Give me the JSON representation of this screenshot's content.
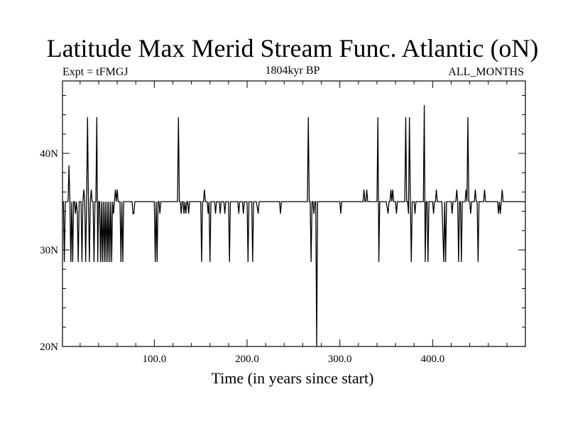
{
  "chart_data": {
    "type": "line",
    "title": "Latitude Max Merid Stream Func. Atlantic (oN)",
    "subtitle_left": "Expt = tFMGJ",
    "subtitle_center": "1804kyr BP",
    "subtitle_right": "ALL_MONTHS",
    "xlabel": "Time (in years since start)",
    "ylabel": "",
    "xlim": [
      1,
      500
    ],
    "ylim": [
      20,
      47.5
    ],
    "x_ticks": [
      100,
      200,
      300,
      400
    ],
    "x_tick_labels": [
      "100.0",
      "200.0",
      "300.0",
      "400.0"
    ],
    "y_ticks": [
      20,
      30,
      40
    ],
    "y_tick_labels": [
      "20N",
      "30N",
      "40N"
    ],
    "grid": false,
    "series": [
      {
        "color": "#000000",
        "points": [
          [
            1,
            35
          ],
          [
            2,
            35
          ],
          [
            3,
            28.75
          ],
          [
            4,
            35
          ],
          [
            5,
            35
          ],
          [
            6,
            35
          ],
          [
            7,
            35
          ],
          [
            8,
            38.75
          ],
          [
            9,
            35
          ],
          [
            10,
            28.75
          ],
          [
            11,
            35
          ],
          [
            12,
            28.75
          ],
          [
            13,
            35
          ],
          [
            14,
            35
          ],
          [
            15,
            33.75
          ],
          [
            16,
            35
          ],
          [
            17,
            33.75
          ],
          [
            18,
            28.75
          ],
          [
            19,
            35
          ],
          [
            20,
            35
          ],
          [
            21,
            35
          ],
          [
            22,
            28.75
          ],
          [
            23,
            35
          ],
          [
            24,
            36.25
          ],
          [
            25,
            35
          ],
          [
            26,
            28.75
          ],
          [
            27,
            35
          ],
          [
            28,
            43.75
          ],
          [
            29,
            35
          ],
          [
            30,
            28.75
          ],
          [
            31,
            35
          ],
          [
            32,
            36.25
          ],
          [
            33,
            35
          ],
          [
            34,
            35
          ],
          [
            35,
            28.75
          ],
          [
            36,
            35
          ],
          [
            37,
            35
          ],
          [
            38,
            43.75
          ],
          [
            39,
            28.75
          ],
          [
            40,
            35
          ],
          [
            41,
            35
          ],
          [
            42,
            28.75
          ],
          [
            43,
            35
          ],
          [
            44,
            28.75
          ],
          [
            45,
            35
          ],
          [
            46,
            28.75
          ],
          [
            47,
            35
          ],
          [
            48,
            28.75
          ],
          [
            49,
            35
          ],
          [
            50,
            28.75
          ],
          [
            51,
            35
          ],
          [
            52,
            28.75
          ],
          [
            53,
            35
          ],
          [
            54,
            28.75
          ],
          [
            55,
            35
          ],
          [
            56,
            33.75
          ],
          [
            57,
            35
          ],
          [
            58,
            36.25
          ],
          [
            59,
            35
          ],
          [
            60,
            36.25
          ],
          [
            61,
            35
          ],
          [
            62,
            35
          ],
          [
            63,
            35
          ],
          [
            64,
            28.75
          ],
          [
            65,
            35
          ],
          [
            66,
            28.75
          ],
          [
            67,
            35
          ],
          [
            68,
            35
          ],
          [
            70,
            35
          ],
          [
            75,
            35
          ],
          [
            76,
            35
          ],
          [
            77,
            33.75
          ],
          [
            78,
            33.75
          ],
          [
            79,
            35
          ],
          [
            85,
            35
          ],
          [
            90,
            35
          ],
          [
            95,
            35
          ],
          [
            100,
            35
          ],
          [
            101,
            28.75
          ],
          [
            102,
            35
          ],
          [
            103,
            28.75
          ],
          [
            104,
            35
          ],
          [
            105,
            35
          ],
          [
            106,
            33.75
          ],
          [
            107,
            35
          ],
          [
            110,
            35
          ],
          [
            115,
            35
          ],
          [
            120,
            35
          ],
          [
            125,
            35
          ],
          [
            126,
            43.75
          ],
          [
            127,
            35
          ],
          [
            128,
            35
          ],
          [
            129,
            33.75
          ],
          [
            130,
            35
          ],
          [
            131,
            35
          ],
          [
            132,
            33.75
          ],
          [
            133,
            35
          ],
          [
            134,
            33.75
          ],
          [
            135,
            35
          ],
          [
            136,
            35
          ],
          [
            137,
            33.75
          ],
          [
            138,
            35
          ],
          [
            140,
            35
          ],
          [
            145,
            35
          ],
          [
            150,
            35
          ],
          [
            151,
            28.75
          ],
          [
            152,
            35
          ],
          [
            153,
            35
          ],
          [
            154,
            36.25
          ],
          [
            155,
            35
          ],
          [
            156,
            35
          ],
          [
            157,
            35
          ],
          [
            158,
            33.75
          ],
          [
            159,
            35
          ],
          [
            160,
            28.75
          ],
          [
            161,
            35
          ],
          [
            162,
            35
          ],
          [
            165,
            35
          ],
          [
            166,
            33.75
          ],
          [
            167,
            35
          ],
          [
            170,
            35
          ],
          [
            171,
            33.75
          ],
          [
            172,
            35
          ],
          [
            175,
            35
          ],
          [
            176,
            33.75
          ],
          [
            177,
            35
          ],
          [
            180,
            35
          ],
          [
            181,
            28.75
          ],
          [
            182,
            35
          ],
          [
            185,
            35
          ],
          [
            190,
            35
          ],
          [
            191,
            33.75
          ],
          [
            192,
            35
          ],
          [
            195,
            35
          ],
          [
            196,
            33.75
          ],
          [
            197,
            35
          ],
          [
            200,
            35
          ],
          [
            201,
            28.75
          ],
          [
            202,
            35
          ],
          [
            205,
            35
          ],
          [
            206,
            28.75
          ],
          [
            207,
            35
          ],
          [
            210,
            35
          ],
          [
            212,
            33.75
          ],
          [
            213,
            35
          ],
          [
            220,
            35
          ],
          [
            230,
            35
          ],
          [
            235,
            35
          ],
          [
            236,
            33.75
          ],
          [
            237,
            35
          ],
          [
            240,
            35
          ],
          [
            250,
            35
          ],
          [
            260,
            35
          ],
          [
            265,
            35
          ],
          [
            266,
            43.75
          ],
          [
            267,
            35
          ],
          [
            268,
            35
          ],
          [
            269,
            28.75
          ],
          [
            270,
            35
          ],
          [
            271,
            35
          ],
          [
            272,
            33.75
          ],
          [
            273,
            35
          ],
          [
            274,
            35
          ],
          [
            275,
            20
          ],
          [
            276,
            35
          ],
          [
            277,
            35
          ],
          [
            280,
            35
          ],
          [
            290,
            35
          ],
          [
            300,
            35
          ],
          [
            301,
            33.75
          ],
          [
            302,
            35
          ],
          [
            310,
            35
          ],
          [
            320,
            35
          ],
          [
            325,
            35
          ],
          [
            326,
            36.25
          ],
          [
            327,
            35
          ],
          [
            328,
            35
          ],
          [
            329,
            36.25
          ],
          [
            330,
            35
          ],
          [
            335,
            35
          ],
          [
            340,
            35
          ],
          [
            341,
            43.75
          ],
          [
            342,
            28.75
          ],
          [
            343,
            35
          ],
          [
            344,
            35
          ],
          [
            345,
            35
          ],
          [
            350,
            35
          ],
          [
            352,
            33.75
          ],
          [
            353,
            35
          ],
          [
            354,
            35
          ],
          [
            355,
            36.25
          ],
          [
            356,
            35
          ],
          [
            357,
            36.25
          ],
          [
            358,
            35
          ],
          [
            360,
            35
          ],
          [
            361,
            33.75
          ],
          [
            362,
            35
          ],
          [
            365,
            35
          ],
          [
            370,
            35
          ],
          [
            371,
            43.75
          ],
          [
            372,
            35
          ],
          [
            373,
            35
          ],
          [
            374,
            33.75
          ],
          [
            375,
            43.75
          ],
          [
            376,
            35
          ],
          [
            377,
            28.75
          ],
          [
            378,
            35
          ],
          [
            380,
            35
          ],
          [
            381,
            33.75
          ],
          [
            382,
            35
          ],
          [
            385,
            35
          ],
          [
            390,
            35
          ],
          [
            391,
            45
          ],
          [
            392,
            28.75
          ],
          [
            393,
            35
          ],
          [
            394,
            35
          ],
          [
            395,
            28.75
          ],
          [
            396,
            35
          ],
          [
            397,
            35
          ],
          [
            400,
            35
          ],
          [
            401,
            33.75
          ],
          [
            402,
            35
          ],
          [
            403,
            35
          ],
          [
            404,
            36.25
          ],
          [
            405,
            35
          ],
          [
            410,
            35
          ],
          [
            412,
            28.75
          ],
          [
            413,
            35
          ],
          [
            414,
            28.75
          ],
          [
            415,
            35
          ],
          [
            420,
            35
          ],
          [
            421,
            33.75
          ],
          [
            422,
            35
          ],
          [
            425,
            35
          ],
          [
            426,
            36.25
          ],
          [
            427,
            35
          ],
          [
            428,
            28.75
          ],
          [
            429,
            35
          ],
          [
            430,
            35
          ],
          [
            431,
            28.75
          ],
          [
            432,
            35
          ],
          [
            435,
            35
          ],
          [
            436,
            36.25
          ],
          [
            437,
            35
          ],
          [
            438,
            43.75
          ],
          [
            439,
            35
          ],
          [
            440,
            35
          ],
          [
            441,
            33.75
          ],
          [
            442,
            35
          ],
          [
            445,
            35
          ],
          [
            446,
            36.25
          ],
          [
            447,
            35
          ],
          [
            448,
            35
          ],
          [
            449,
            28.75
          ],
          [
            450,
            35
          ],
          [
            455,
            35
          ],
          [
            456,
            36.25
          ],
          [
            457,
            35
          ],
          [
            460,
            35
          ],
          [
            465,
            35
          ],
          [
            470,
            35
          ],
          [
            471,
            33.75
          ],
          [
            472,
            35
          ],
          [
            473,
            33.75
          ],
          [
            474,
            35
          ],
          [
            475,
            36.25
          ],
          [
            476,
            35
          ],
          [
            480,
            35
          ],
          [
            485,
            35
          ],
          [
            490,
            35
          ],
          [
            495,
            35
          ],
          [
            500,
            35
          ]
        ]
      }
    ]
  }
}
